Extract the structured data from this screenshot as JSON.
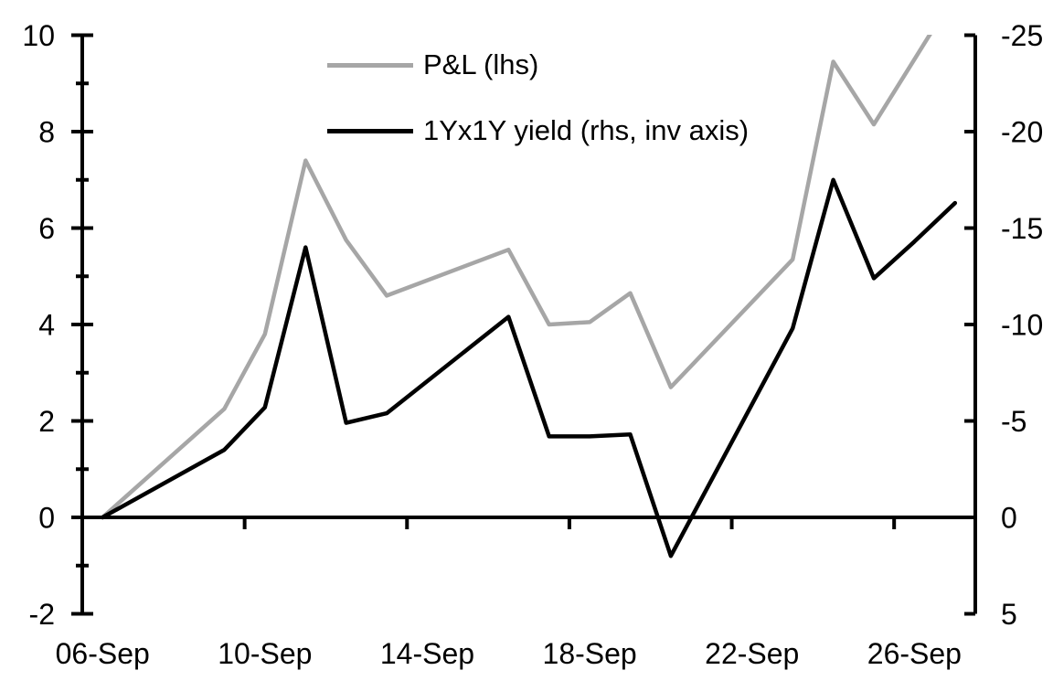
{
  "chart_data": {
    "type": "line",
    "title": "",
    "x_dates": [
      "06-Sep",
      "09-Sep",
      "10-Sep",
      "11-Sep",
      "12-Sep",
      "13-Sep",
      "16-Sep",
      "17-Sep",
      "18-Sep",
      "19-Sep",
      "20-Sep",
      "23-Sep",
      "24-Sep",
      "25-Sep",
      "26-Sep",
      "27-Sep"
    ],
    "x_days": [
      6,
      9,
      10,
      11,
      12,
      13,
      16,
      17,
      18,
      19,
      20,
      23,
      24,
      25,
      26,
      27
    ],
    "series": [
      {
        "name": "P&L (lhs)",
        "axis": "left",
        "color": "#a6a6a6",
        "values": [
          0,
          2.25,
          3.8,
          7.4,
          5.75,
          4.6,
          5.55,
          4.0,
          4.05,
          4.65,
          2.7,
          5.35,
          9.45,
          8.15,
          9.5,
          10.85
        ]
      },
      {
        "name": "1Yx1Y yield (rhs, inv axis)",
        "axis": "right",
        "color": "#000000",
        "values": [
          0,
          -3.5,
          -5.7,
          -14.0,
          -4.9,
          -5.4,
          -10.4,
          -4.2,
          -4.2,
          -4.3,
          2.0,
          -9.8,
          -17.5,
          -12.4,
          -14.3,
          -16.3
        ]
      }
    ],
    "left_axis": {
      "min": -2,
      "max": 10,
      "ticks": [
        10,
        8,
        6,
        4,
        2,
        0,
        -2
      ],
      "minor_ticks": [
        9,
        7,
        5,
        3,
        1,
        -1
      ],
      "inverted": false
    },
    "right_axis": {
      "min": -25,
      "max": 5,
      "ticks": [
        -25,
        -20,
        -15,
        -10,
        -5,
        0,
        5
      ],
      "inverted": true
    },
    "x_axis": {
      "labels": [
        "06-Sep",
        "10-Sep",
        "14-Sep",
        "18-Sep",
        "22-Sep",
        "26-Sep"
      ],
      "label_days": [
        6,
        10,
        14,
        18,
        22,
        26
      ],
      "tick_days": [
        9.5,
        13.5,
        17.5,
        21.5,
        25.5
      ],
      "domain_days": [
        5.5,
        27.5
      ]
    },
    "legend": [
      {
        "label": "P&L (lhs)"
      },
      {
        "label": "1Yx1Y yield (rhs, inv axis)"
      }
    ],
    "colors": {
      "pl_line": "#a6a6a6",
      "yield_line": "#000000",
      "axis": "#000000",
      "text": "#000000",
      "background": "#ffffff"
    },
    "grid": "off",
    "legend_position": "top-center-inside"
  }
}
